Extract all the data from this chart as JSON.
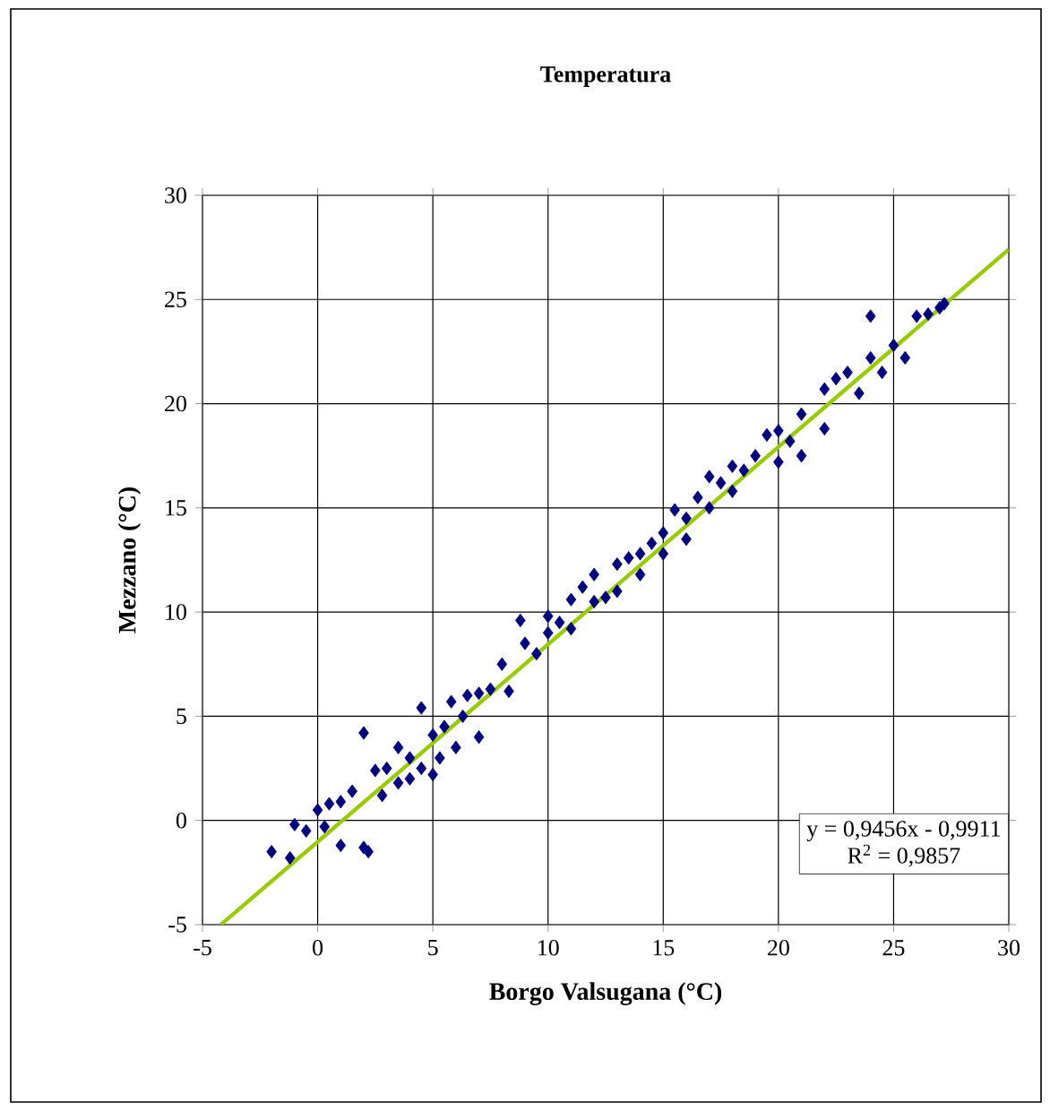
{
  "chart_data": {
    "type": "scatter",
    "title": "Temperatura",
    "xlabel": "Borgo Valsugana (°C)",
    "ylabel": "Mezzano (°C)",
    "xlim": [
      -5,
      30
    ],
    "ylim": [
      -5,
      30
    ],
    "xticks": [
      -5,
      0,
      5,
      10,
      15,
      20,
      25,
      30
    ],
    "yticks": [
      -5,
      0,
      5,
      10,
      15,
      20,
      25,
      30
    ],
    "grid": true,
    "annotations": [
      "y = 0,9456x - 0,9911",
      "R$^{2}$ = 0,9857"
    ],
    "series": [
      {
        "marker": "diamond",
        "color": "#000080",
        "x": [
          -2,
          -1.2,
          -1,
          -0.5,
          0,
          0.3,
          0.5,
          1,
          1,
          1.5,
          2,
          2.2,
          2,
          2.5,
          2.8,
          3,
          3.5,
          3.5,
          4,
          4,
          4.5,
          4.5,
          5,
          5,
          5.3,
          5.5,
          5.8,
          6,
          6.3,
          6.5,
          7,
          7,
          7.5,
          8,
          8.3,
          8.8,
          9,
          9.5,
          10,
          10,
          10.5,
          11,
          11,
          11.5,
          12,
          12,
          12.5,
          13,
          13,
          13.5,
          14,
          14,
          14.5,
          15,
          15,
          15.5,
          16,
          16,
          16.5,
          17,
          17,
          17.5,
          18,
          18,
          18.5,
          19,
          19.5,
          20,
          20,
          20.5,
          21,
          21,
          22,
          22,
          22.5,
          23,
          23.5,
          24,
          24,
          24.5,
          25,
          25.5,
          26,
          26.5,
          27,
          27.2
        ],
        "values": [
          -1.5,
          -1.8,
          -0.2,
          -0.5,
          0.5,
          -0.3,
          0.8,
          -1.2,
          0.9,
          1.4,
          -1.3,
          -1.5,
          4.2,
          2.4,
          1.2,
          2.5,
          1.8,
          3.5,
          2.0,
          3,
          5.4,
          2.5,
          4.1,
          2.2,
          3.0,
          4.5,
          5.7,
          3.5,
          5,
          6,
          6.1,
          4,
          6.3,
          7.5,
          6.2,
          9.6,
          8.5,
          8,
          9.8,
          9,
          9.5,
          10.6,
          9.2,
          11.2,
          10.5,
          11.8,
          10.7,
          12.3,
          11,
          12.6,
          12.8,
          11.8,
          13.3,
          13.8,
          12.8,
          14.9,
          14.5,
          13.5,
          15.5,
          16.5,
          15,
          16.2,
          17,
          15.8,
          16.8,
          17.5,
          18.5,
          18.7,
          17.2,
          18.2,
          19.5,
          17.5,
          20.7,
          18.8,
          21.2,
          21.5,
          20.5,
          22.2,
          24.2,
          21.5,
          22.8,
          22.2,
          24.2,
          24.3,
          24.6,
          24.8
        ]
      },
      {
        "type": "line",
        "color": "#99cc00",
        "x": [
          -4.2,
          30
        ],
        "values": [
          -5.0,
          27.4
        ]
      }
    ]
  }
}
